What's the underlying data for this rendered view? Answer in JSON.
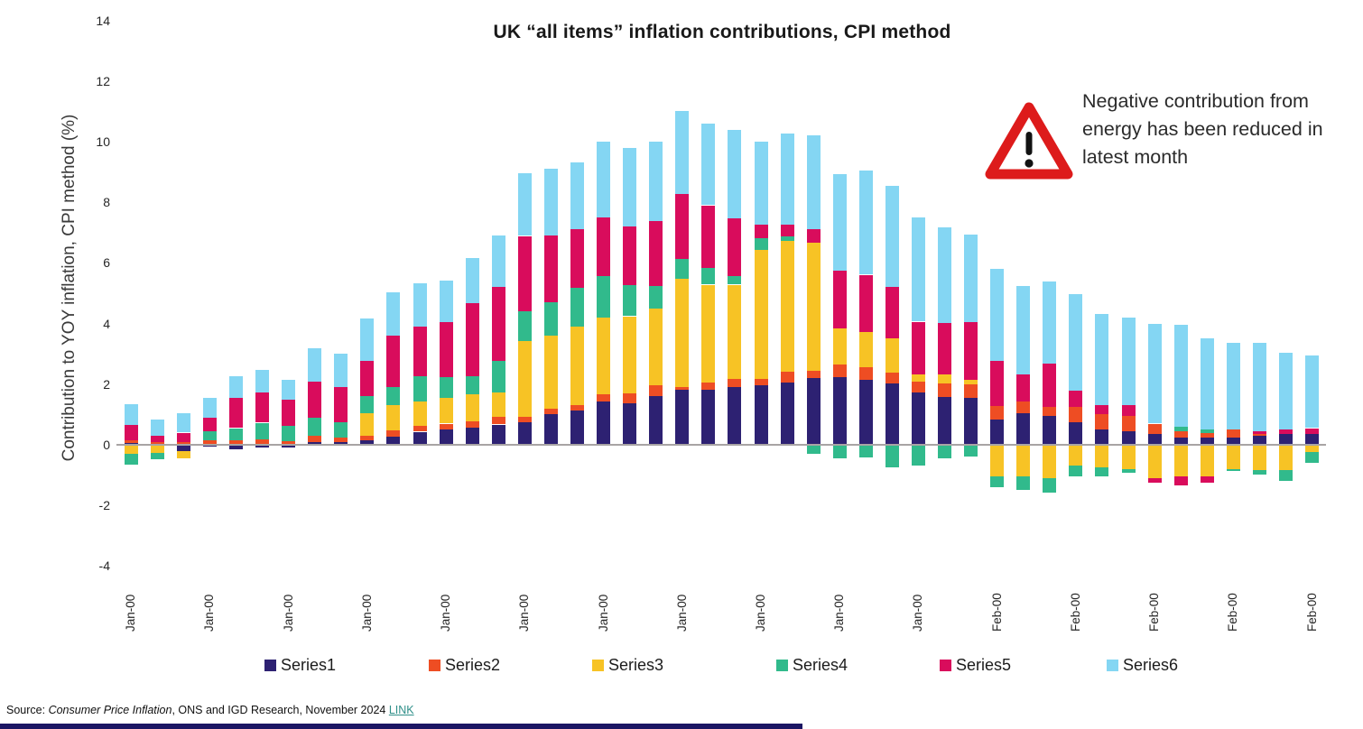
{
  "title": "UK “all items” inflation contributions, CPI method",
  "y_axis": {
    "label": "Contribution to YOY inflation, CPI method (%)",
    "ticks": [
      14,
      12,
      10,
      8,
      6,
      4,
      2,
      0,
      -2,
      -4
    ]
  },
  "annotation": {
    "icon": "warning-triangle",
    "lines": [
      "Negative contribution from",
      "energy has been reduced in",
      "latest month"
    ]
  },
  "source": {
    "prefix": "Source: ",
    "italic": "Consumer Price Inflation",
    "rest": ", ONS and IGD Research, November 2024 ",
    "link": "LINK"
  },
  "colors": {
    "warning_red": "#dd1b1b",
    "zero_line": "#a8a4a4",
    "link_teal": "#2f8f89"
  },
  "chart_data": {
    "type": "bar",
    "stacked": true,
    "n_bars": 46,
    "ylim": [
      -4,
      14
    ],
    "grid": false,
    "legend_position": "bottom",
    "x_tick_every_n_bars": 3,
    "x_tick_labels": [
      "Jan-00",
      "Jan-00",
      "Jan-00",
      "Jan-00",
      "Jan-00",
      "Jan-00",
      "Jan-00",
      "Jan-00",
      "Jan-00",
      "Jan-00",
      "Jan-00",
      "Feb-00",
      "Feb-00",
      "Feb-00",
      "Feb-00",
      "Feb-00"
    ],
    "series": [
      {
        "name": "Series1",
        "color": "#2d2172",
        "values": [
          0.05,
          0.03,
          -0.2,
          -0.07,
          -0.15,
          -0.1,
          -0.09,
          0.1,
          0.08,
          0.15,
          0.28,
          0.43,
          0.52,
          0.57,
          0.67,
          0.74,
          1.0,
          1.12,
          1.42,
          1.37,
          1.61,
          1.81,
          1.81,
          1.91,
          1.96,
          2.06,
          2.2,
          2.22,
          2.13,
          2.03,
          1.73,
          1.58,
          1.55,
          0.84,
          1.04,
          0.94,
          0.74,
          0.5,
          0.45,
          0.35,
          0.25,
          0.23,
          0.23,
          0.3,
          0.37,
          0.35
        ]
      },
      {
        "name": "Series2",
        "color": "#ee4d23",
        "values": [
          0.1,
          0.06,
          0.1,
          0.15,
          0.15,
          0.18,
          0.13,
          0.2,
          0.17,
          0.16,
          0.2,
          0.2,
          0.18,
          0.2,
          0.25,
          0.18,
          0.2,
          0.2,
          0.24,
          0.34,
          0.35,
          0.1,
          0.25,
          0.25,
          0.2,
          0.35,
          0.25,
          0.42,
          0.44,
          0.35,
          0.35,
          0.45,
          0.45,
          0.45,
          0.4,
          0.3,
          0.5,
          0.5,
          0.5,
          0.35,
          0.2,
          0.15,
          0.27,
          0.07,
          0.0,
          0.0
        ]
      },
      {
        "name": "Series3",
        "color": "#f7c325",
        "values": [
          -0.3,
          -0.27,
          -0.25,
          0.0,
          0.0,
          0.0,
          0.0,
          0.0,
          0.0,
          0.73,
          0.84,
          0.79,
          0.86,
          0.89,
          0.81,
          2.5,
          2.4,
          2.57,
          2.53,
          2.53,
          2.53,
          3.57,
          3.22,
          3.12,
          4.26,
          4.31,
          4.21,
          1.19,
          1.14,
          1.13,
          0.25,
          0.3,
          0.15,
          -1.05,
          -1.04,
          -1.09,
          -0.69,
          -0.74,
          -0.79,
          -1.09,
          -1.04,
          -1.05,
          -0.79,
          -0.84,
          -0.84,
          -0.25
        ]
      },
      {
        "name": "Series4",
        "color": "#31ba8c",
        "values": [
          -0.35,
          -0.22,
          0.0,
          0.3,
          0.4,
          0.55,
          0.5,
          0.58,
          0.5,
          0.57,
          0.59,
          0.84,
          0.66,
          0.59,
          1.05,
          0.99,
          1.11,
          1.3,
          1.38,
          1.04,
          0.74,
          0.64,
          0.54,
          0.29,
          0.39,
          0.15,
          -0.3,
          -0.45,
          -0.43,
          -0.74,
          -0.69,
          -0.45,
          -0.4,
          -0.35,
          -0.45,
          -0.5,
          -0.35,
          -0.3,
          -0.13,
          0.0,
          0.15,
          0.12,
          -0.07,
          -0.15,
          -0.35,
          -0.35
        ]
      },
      {
        "name": "Series5",
        "color": "#d90c5c",
        "values": [
          0.5,
          0.2,
          0.3,
          0.45,
          1.0,
          1.0,
          0.85,
          1.2,
          1.17,
          1.17,
          1.7,
          1.63,
          1.84,
          2.41,
          2.42,
          2.48,
          2.19,
          1.93,
          1.93,
          1.92,
          2.16,
          2.15,
          2.08,
          1.89,
          0.45,
          0.4,
          0.45,
          1.91,
          1.9,
          1.69,
          1.73,
          1.68,
          1.9,
          1.49,
          0.89,
          1.44,
          0.55,
          0.3,
          0.35,
          -0.15,
          -0.3,
          -0.2,
          0.0,
          0.08,
          0.13,
          0.2
        ]
      },
      {
        "name": "Series6",
        "color": "#84d6f3",
        "values": [
          0.7,
          0.55,
          0.65,
          0.65,
          0.7,
          0.75,
          0.65,
          1.1,
          1.1,
          1.4,
          1.42,
          1.44,
          1.36,
          1.49,
          1.71,
          2.06,
          2.21,
          2.2,
          2.5,
          2.6,
          2.61,
          2.73,
          2.7,
          2.94,
          2.74,
          3.0,
          3.1,
          3.19,
          3.43,
          3.34,
          3.43,
          3.15,
          2.88,
          3.02,
          2.92,
          2.72,
          3.17,
          3.02,
          2.9,
          3.3,
          3.35,
          3.0,
          2.85,
          2.9,
          2.55,
          2.4
        ]
      }
    ]
  }
}
